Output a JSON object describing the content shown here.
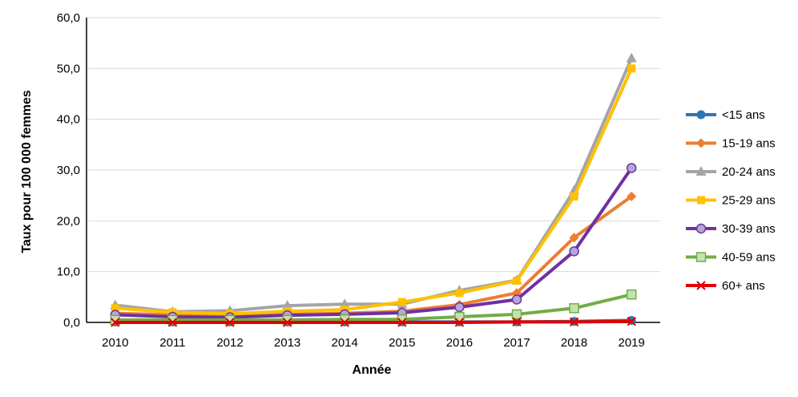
{
  "chart_data": {
    "type": "line",
    "xlabel": "Année",
    "ylabel": "Taux pour 100 000 femmes",
    "x": [
      "2010",
      "2011",
      "2012",
      "2013",
      "2014",
      "2015",
      "2016",
      "2017",
      "2018",
      "2019"
    ],
    "ylim": [
      0,
      60
    ],
    "yticks": [
      "0,0",
      "10,0",
      "20,0",
      "30,0",
      "40,0",
      "50,0",
      "60,0"
    ],
    "grid": "horizontal",
    "legend_position": "right",
    "series": [
      {
        "name": "<15 ans",
        "color": "#2E75B6",
        "marker": "circle",
        "values": [
          0.1,
          0.1,
          0.1,
          0.1,
          0.1,
          0.1,
          0.1,
          0.1,
          0.2,
          0.4
        ]
      },
      {
        "name": "15-19 ans",
        "color": "#ED7D31",
        "marker": "diamond",
        "values": [
          1.8,
          1.5,
          1.4,
          1.6,
          1.8,
          2.2,
          3.5,
          5.8,
          16.7,
          24.8
        ]
      },
      {
        "name": "20-24 ans",
        "color": "#A5A5A5",
        "marker": "triangle",
        "values": [
          3.4,
          2.1,
          2.3,
          3.3,
          3.6,
          3.6,
          6.3,
          8.3,
          26.0,
          52.0
        ]
      },
      {
        "name": "25-29 ans",
        "color": "#FFC000",
        "marker": "square",
        "values": [
          2.8,
          2.0,
          1.7,
          2.2,
          2.5,
          4.0,
          5.8,
          8.2,
          24.8,
          50.0
        ]
      },
      {
        "name": "30-39 ans",
        "color": "#7030A0",
        "marker": "circle-open",
        "values": [
          1.5,
          1.1,
          1.0,
          1.4,
          1.6,
          1.9,
          3.0,
          4.5,
          14.0,
          30.4
        ]
      },
      {
        "name": "40-59 ans",
        "color": "#70AD47",
        "marker": "square-open",
        "values": [
          0.5,
          0.5,
          0.5,
          0.5,
          0.6,
          0.6,
          1.1,
          1.6,
          2.8,
          5.5
        ]
      },
      {
        "name": "60+ ans",
        "color": "#E00000",
        "marker": "x",
        "values": [
          0.0,
          0.0,
          0.0,
          0.0,
          0.0,
          0.0,
          0.0,
          0.1,
          0.1,
          0.2
        ]
      }
    ]
  }
}
